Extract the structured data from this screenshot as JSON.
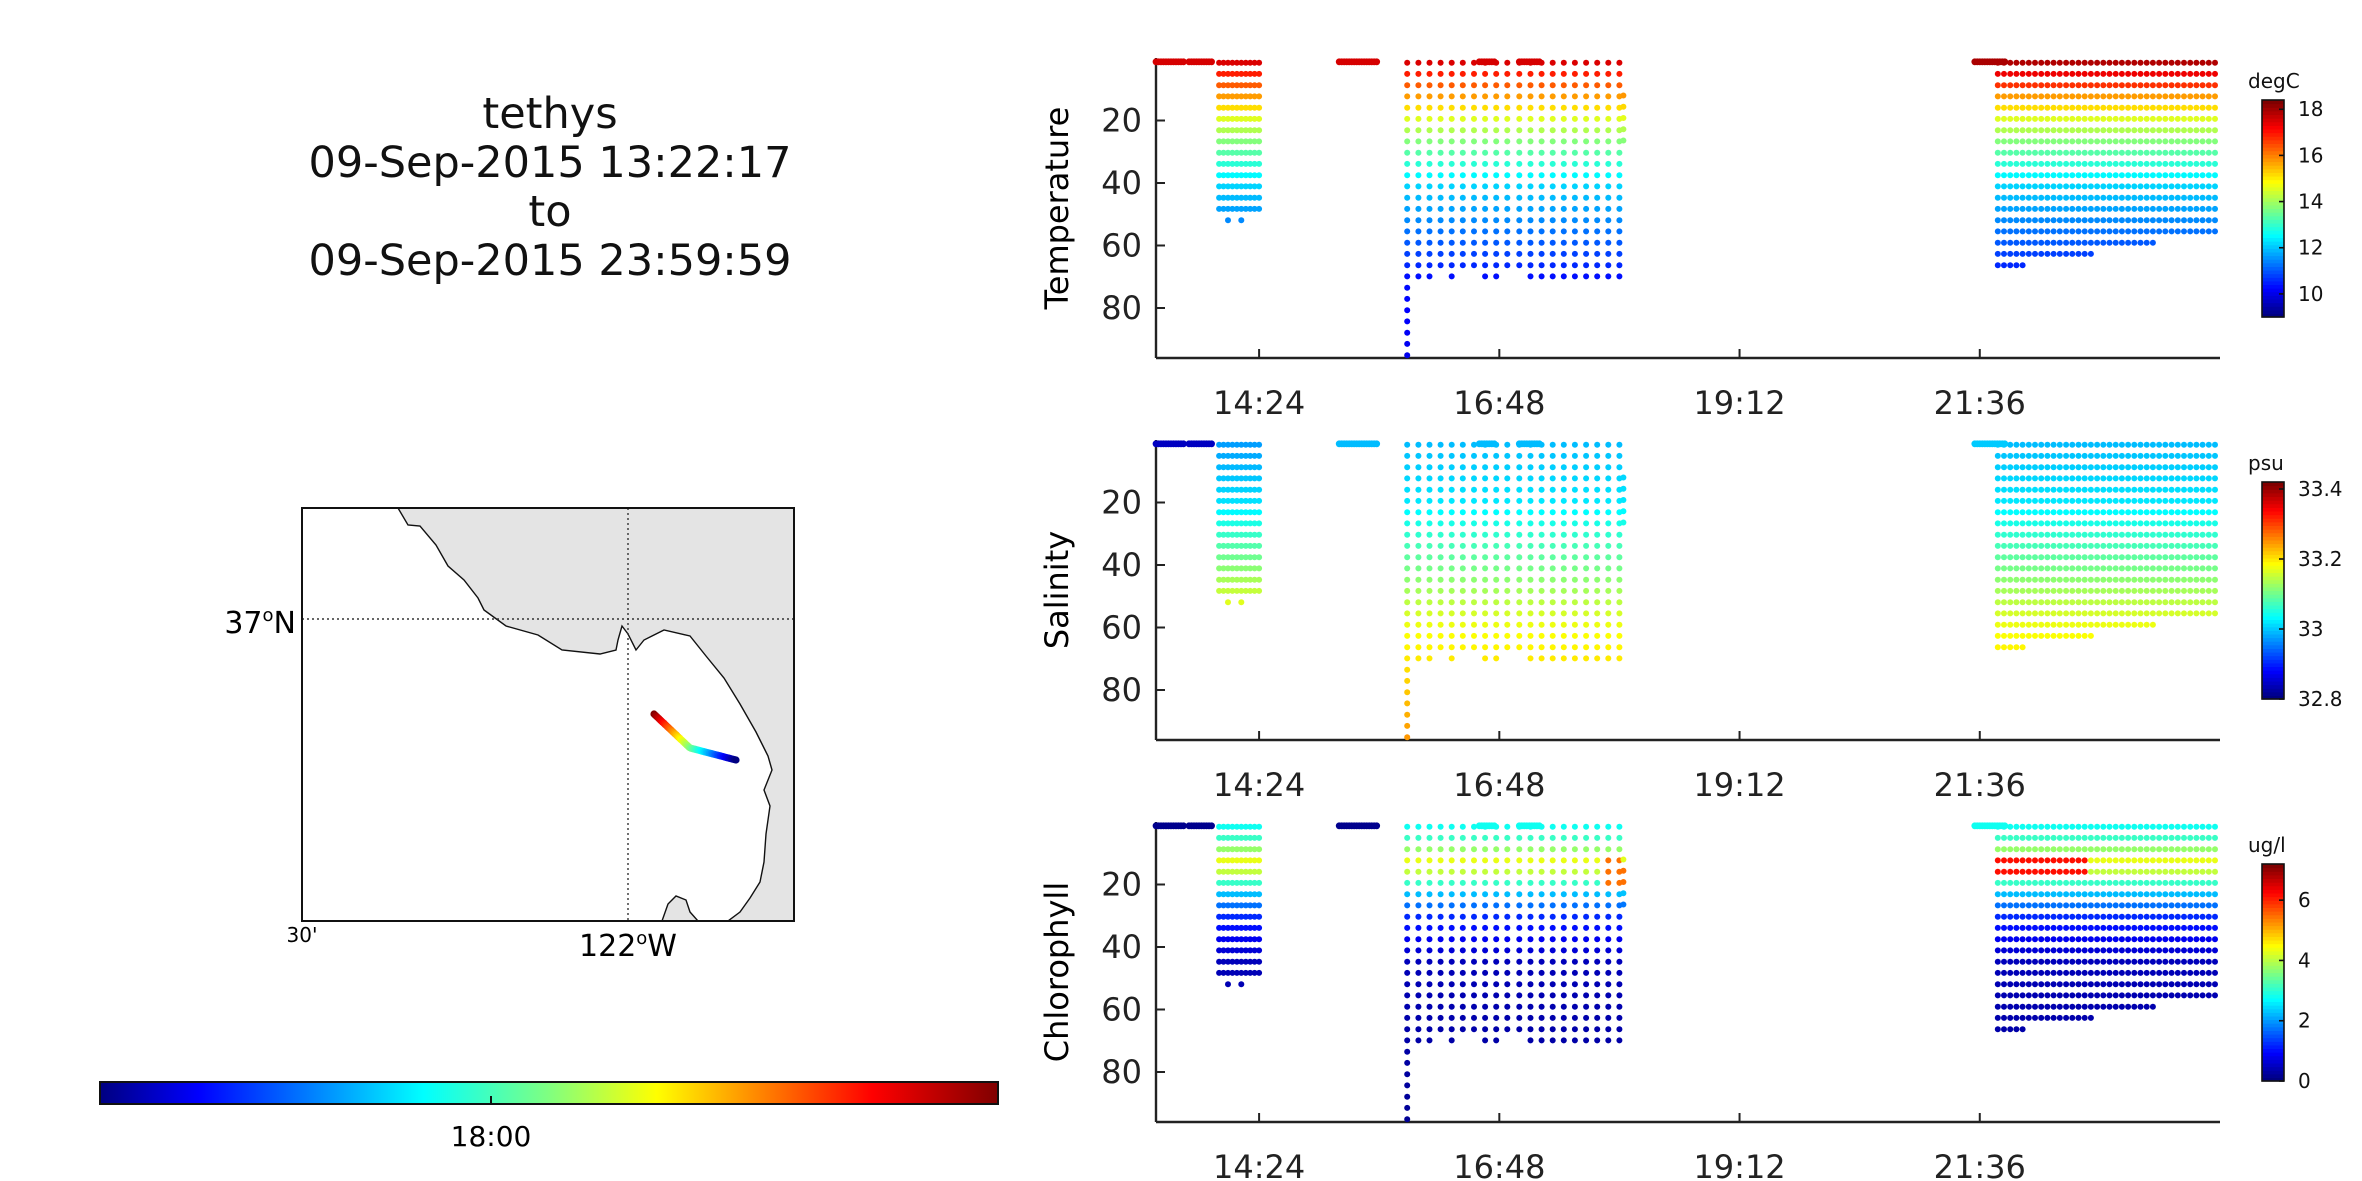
{
  "title": {
    "platform": "tethys",
    "start": "09-Sep-2015 13:22:17",
    "to": "to",
    "end": "09-Sep-2015 23:59:59"
  },
  "map": {
    "lat_label": "37°N",
    "lat_text": "37",
    "lat_suffix": "N",
    "lon_labels": [
      {
        "text": "30'",
        "deg": false
      },
      {
        "text": "122",
        "deg": true,
        "suffix": "W"
      }
    ],
    "track_colors": [
      "#800000",
      "#ff0000",
      "#ff8000",
      "#ffff00",
      "#80ff80",
      "#00ffff",
      "#0080ff",
      "#0000ff",
      "#000080"
    ]
  },
  "time_colorbar": {
    "tick_label": "18:00",
    "colormap": "jet"
  },
  "chart_data": [
    {
      "type": "scatter",
      "name": "temperature-panel",
      "ylabel": "Temperature",
      "units": "degC",
      "y_ticks": [
        20,
        40,
        60,
        80
      ],
      "ylim": [
        96,
        0
      ],
      "x_ticks": [
        "14:24",
        "16:48",
        "19:12",
        "21:36"
      ],
      "xlim_hours": [
        13.37,
        24.0
      ],
      "colorbar": {
        "ticks": [
          10,
          12,
          14,
          16,
          18
        ],
        "range": [
          9,
          18.4
        ]
      },
      "profile_time_windows": [
        {
          "start": "14:00",
          "end": "14:25",
          "max_depth": 52
        },
        {
          "start": "15:50",
          "end": "17:00",
          "max_depth": 96
        },
        {
          "start": "17:00",
          "end": "18:00",
          "max_depth": 73
        },
        {
          "start": "21:45",
          "end": "23:59",
          "max_depth": 69
        }
      ],
      "value_profile": {
        "surface": 17.8,
        "depth_20": 14.5,
        "depth_40": 12.2,
        "depth_70": 10.3,
        "depth_95": 10.0
      }
    },
    {
      "type": "scatter",
      "name": "salinity-panel",
      "ylabel": "Salinity",
      "units": "psu",
      "y_ticks": [
        20,
        40,
        60,
        80
      ],
      "ylim": [
        96,
        0
      ],
      "x_ticks": [
        "14:24",
        "16:48",
        "19:12",
        "21:36"
      ],
      "xlim_hours": [
        13.37,
        24.0
      ],
      "colorbar": {
        "ticks": [
          32.8,
          33,
          33.2,
          33.4
        ],
        "range": [
          32.8,
          33.42
        ]
      },
      "value_profile": {
        "surface": 32.98,
        "depth_20": 33.02,
        "depth_40": 33.1,
        "depth_60": 33.18,
        "depth_95": 33.25
      }
    },
    {
      "type": "scatter",
      "name": "chlorophyll-panel",
      "ylabel": "Chlorophyll",
      "units": "ug/l",
      "y_ticks": [
        20,
        40,
        60,
        80
      ],
      "ylim": [
        96,
        0
      ],
      "x_ticks": [
        "14:24",
        "16:48",
        "19:12",
        "21:36"
      ],
      "xlim_hours": [
        13.37,
        24.0
      ],
      "colorbar": {
        "ticks": [
          0,
          2,
          4,
          6
        ],
        "range": [
          0,
          7.2
        ]
      },
      "value_profile": {
        "surface": 2.8,
        "depth_12": 4.5,
        "depth_30": 1.2,
        "depth_50": 0.3,
        "depth_95": 0.2
      }
    }
  ]
}
